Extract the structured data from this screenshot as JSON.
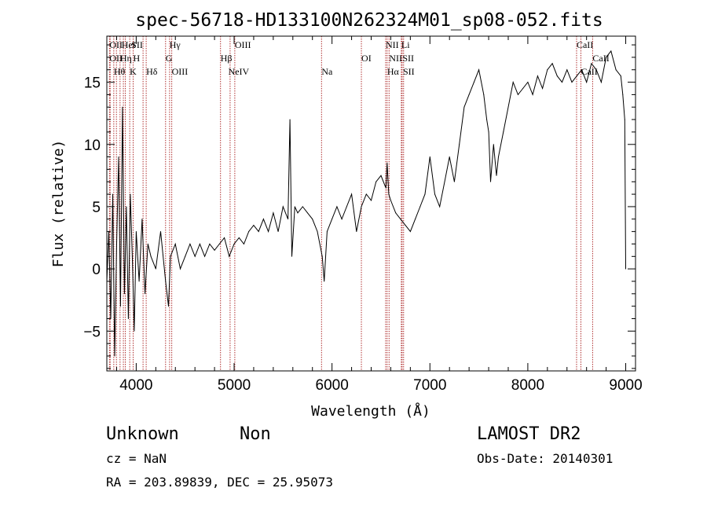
{
  "chart_data": {
    "type": "line",
    "title": "spec-56718-HD133100N262324M01_sp08-052.fits",
    "xlabel": "Wavelength (Å)",
    "ylabel": "Flux (relative)",
    "xlim": [
      3700,
      9100
    ],
    "ylim": [
      -8.2,
      18.7
    ],
    "x_ticks": [
      4000,
      5000,
      6000,
      7000,
      8000,
      9000
    ],
    "y_ticks": [
      -5,
      0,
      5,
      10,
      15
    ],
    "x_tick_labels": [
      "4000",
      "5000",
      "6000",
      "7000",
      "8000",
      "9000"
    ],
    "y_tick_labels": [
      "−5",
      "0",
      "5",
      "10",
      "15"
    ],
    "grid": false,
    "series": [
      {
        "color": "#000000",
        "x": [
          3700,
          3720,
          3740,
          3760,
          3780,
          3800,
          3820,
          3840,
          3860,
          3880,
          3900,
          3920,
          3940,
          3960,
          3980,
          4000,
          4030,
          4060,
          4090,
          4120,
          4150,
          4200,
          4250,
          4300,
          4330,
          4350,
          4400,
          4450,
          4500,
          4550,
          4600,
          4650,
          4700,
          4750,
          4800,
          4850,
          4900,
          4950,
          5000,
          5050,
          5100,
          5150,
          5200,
          5250,
          5300,
          5350,
          5400,
          5450,
          5500,
          5550,
          5570,
          5590,
          5620,
          5650,
          5700,
          5750,
          5800,
          5850,
          5900,
          5920,
          5950,
          6000,
          6050,
          6100,
          6150,
          6200,
          6250,
          6300,
          6350,
          6400,
          6450,
          6500,
          6550,
          6563,
          6580,
          6600,
          6650,
          6700,
          6750,
          6800,
          6850,
          6900,
          6950,
          7000,
          7050,
          7100,
          7150,
          7200,
          7250,
          7300,
          7350,
          7400,
          7450,
          7500,
          7550,
          7580,
          7600,
          7620,
          7650,
          7680,
          7700,
          7750,
          7800,
          7850,
          7900,
          7950,
          8000,
          8050,
          8100,
          8150,
          8200,
          8250,
          8300,
          8350,
          8400,
          8450,
          8500,
          8550,
          8600,
          8650,
          8700,
          8750,
          8800,
          8850,
          8900,
          8950,
          8970,
          8990,
          9000
        ],
        "y": [
          -1,
          3,
          -4,
          6,
          -7,
          2,
          9,
          -3,
          13,
          -2,
          5,
          -4,
          6,
          1,
          -5,
          3,
          -1,
          4,
          -2,
          2,
          1,
          0,
          3,
          -1,
          -3,
          1,
          2,
          0,
          1,
          2,
          1,
          2,
          1,
          2,
          1.5,
          2,
          2.5,
          1,
          2,
          2.5,
          2,
          3,
          3.5,
          3,
          4,
          3,
          4.5,
          3,
          5,
          4,
          12,
          1,
          5,
          4.5,
          5,
          4.5,
          4,
          3,
          1,
          -1,
          3,
          4,
          5,
          4,
          5,
          6,
          3,
          5,
          6,
          5.5,
          7,
          7.5,
          6.5,
          8.5,
          6,
          5.5,
          4.5,
          4,
          3.5,
          3,
          4,
          5,
          6,
          9,
          6,
          5,
          7,
          9,
          7,
          10,
          13,
          14,
          15,
          16,
          14,
          12,
          11,
          7,
          10,
          7.5,
          9,
          11,
          13,
          15,
          14,
          14.5,
          15,
          14,
          15.5,
          14.5,
          16,
          16.5,
          15.5,
          15,
          16,
          15,
          15.5,
          16,
          15,
          16.5,
          16,
          15,
          17,
          17.5,
          16,
          15.5,
          14,
          12,
          0
        ]
      }
    ],
    "line_markers": [
      {
        "wl": 3727,
        "label": "OII"
      },
      {
        "wl": 3734,
        "label": "OII"
      },
      {
        "wl": 3771,
        "label": "Hθ"
      },
      {
        "wl": 3798,
        "label": "Hθ"
      },
      {
        "wl": 3835,
        "label": "Hη"
      },
      {
        "wl": 3869,
        "label": "He"
      },
      {
        "wl": 3889,
        "label": "HeI"
      },
      {
        "wl": 3934,
        "label": "K"
      },
      {
        "wl": 3969,
        "label": "H"
      },
      {
        "wl": 4070,
        "label": "SII"
      },
      {
        "wl": 4102,
        "label": "Hδ"
      },
      {
        "wl": 4300,
        "label": "G"
      },
      {
        "wl": 4341,
        "label": "Hγ"
      },
      {
        "wl": 4363,
        "label": "OIII"
      },
      {
        "wl": 4861,
        "label": "Hβ"
      },
      {
        "wl": 4959,
        "label": "NeIV"
      },
      {
        "wl": 5007,
        "label": "OIII"
      },
      {
        "wl": 5893,
        "label": "Na"
      },
      {
        "wl": 6300,
        "label": "OI"
      },
      {
        "wl": 6548,
        "label": "NII"
      },
      {
        "wl": 6563,
        "label": "Hα"
      },
      {
        "wl": 6583,
        "label": "NII"
      },
      {
        "wl": 6708,
        "label": "Li"
      },
      {
        "wl": 6716,
        "label": "SII"
      },
      {
        "wl": 6731,
        "label": "SII"
      },
      {
        "wl": 8498,
        "label": "CaII"
      },
      {
        "wl": 8542,
        "label": "CaII"
      },
      {
        "wl": 8662,
        "label": "CaII"
      }
    ],
    "line_label_rows": [
      [
        {
          "wl": 3727,
          "text": "OII"
        },
        {
          "wl": 3850,
          "text": "HeI"
        },
        {
          "wl": 3950,
          "text": "SII"
        },
        {
          "wl": 4340,
          "text": "Hγ"
        },
        {
          "wl": 5007,
          "text": "OIII"
        },
        {
          "wl": 6548,
          "text": "NII"
        },
        {
          "wl": 6708,
          "text": "Li"
        },
        {
          "wl": 8498,
          "text": "CaII"
        }
      ],
      [
        {
          "wl": 3727,
          "text": "OII"
        },
        {
          "wl": 3835,
          "text": "Hη"
        },
        {
          "wl": 3969,
          "text": "H"
        },
        {
          "wl": 4300,
          "text": "G"
        },
        {
          "wl": 4861,
          "text": "Hβ"
        },
        {
          "wl": 6300,
          "text": "OI"
        },
        {
          "wl": 6583,
          "text": "NII"
        },
        {
          "wl": 6720,
          "text": "SII"
        },
        {
          "wl": 8662,
          "text": "CaII"
        }
      ],
      [
        {
          "wl": 3771,
          "text": "Hθ"
        },
        {
          "wl": 3934,
          "text": "K"
        },
        {
          "wl": 4102,
          "text": "Hδ"
        },
        {
          "wl": 4363,
          "text": "OIII"
        },
        {
          "wl": 4940,
          "text": "NeIV"
        },
        {
          "wl": 5893,
          "text": "Na"
        },
        {
          "wl": 6563,
          "text": "Hα"
        },
        {
          "wl": 6725,
          "text": "SII"
        },
        {
          "wl": 8542,
          "text": "CaII"
        }
      ]
    ],
    "info": {
      "class_label": "Unknown",
      "subclass_label": "Non",
      "survey": "LAMOST DR2",
      "cz": "cz = NaN",
      "obs_date": "Obs-Date: 20140301",
      "coords": "RA = 203.89839, DEC =  25.95073"
    }
  }
}
